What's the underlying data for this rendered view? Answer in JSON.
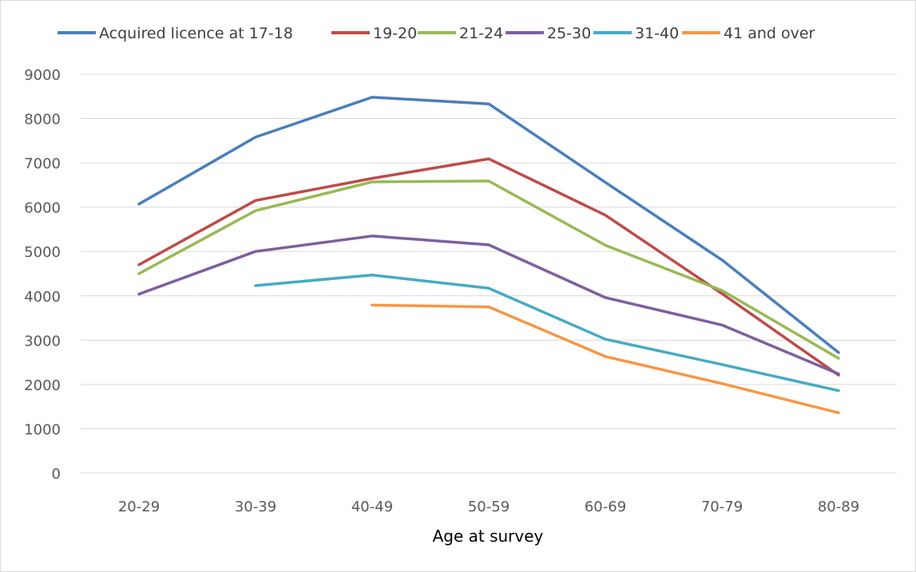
{
  "chart_data": {
    "type": "line",
    "categories": [
      "20-29",
      "30-39",
      "40-49",
      "50-59",
      "60-69",
      "70-79",
      "80-89"
    ],
    "xlabel": "Age at survey",
    "ylabel": "",
    "ylim": [
      0,
      9000
    ],
    "yticks": [
      0,
      1000,
      2000,
      3000,
      4000,
      5000,
      6000,
      7000,
      8000,
      9000
    ],
    "grid": "horizontal",
    "legend_position": "top",
    "series": [
      {
        "name": "Acquired licence at 17-18",
        "color": "#4a7ebb",
        "values": [
          6070,
          7580,
          8480,
          8330,
          6560,
          4810,
          2720
        ]
      },
      {
        "name": "19-20",
        "color": "#be4b48",
        "values": [
          4700,
          6150,
          6650,
          7090,
          5820,
          4050,
          2210
        ]
      },
      {
        "name": "21-24",
        "color": "#98b954",
        "values": [
          4500,
          5920,
          6570,
          6590,
          5140,
          4120,
          2590
        ]
      },
      {
        "name": "25-30",
        "color": "#7d5fa0",
        "values": [
          4040,
          5000,
          5350,
          5150,
          3960,
          3340,
          2240
        ]
      },
      {
        "name": "31-40",
        "color": "#46aac5",
        "values": [
          null,
          4230,
          4470,
          4170,
          3020,
          2450,
          1860
        ]
      },
      {
        "name": "41 and over",
        "color": "#f79646",
        "values": [
          null,
          null,
          3790,
          3750,
          2630,
          2020,
          1360
        ]
      }
    ]
  }
}
